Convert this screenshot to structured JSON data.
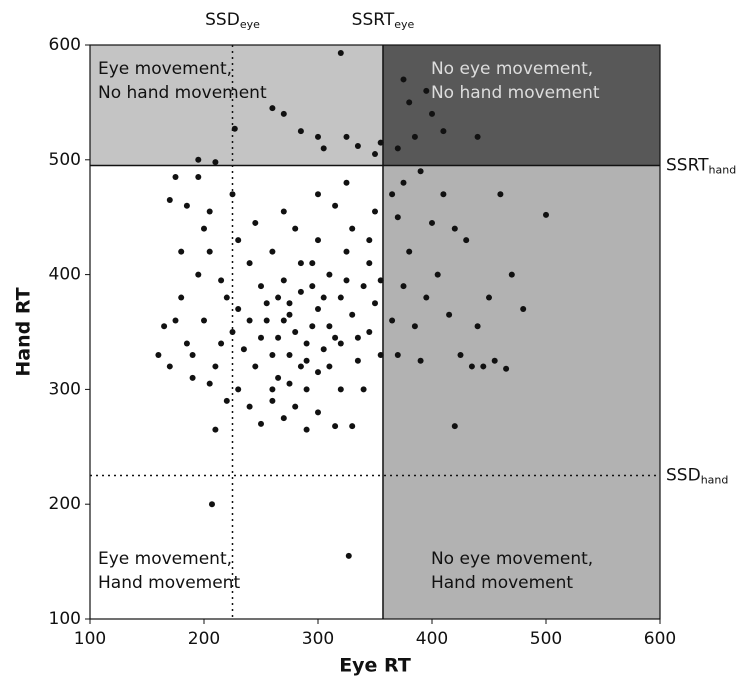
{
  "chart_data": {
    "type": "scatter",
    "xlabel": "Eye RT",
    "ylabel": "Hand RT",
    "xlim": [
      100,
      600
    ],
    "ylim": [
      100,
      600
    ],
    "xticks": [
      100,
      200,
      300,
      400,
      500,
      600
    ],
    "yticks": [
      100,
      200,
      300,
      400,
      500,
      600
    ],
    "color": "#111111",
    "shading": {
      "top-left": "#c4c4c4",
      "top-right": "#585858",
      "bottom-right": "#b2b2b2"
    },
    "reference_lines": [
      {
        "label": "SSD",
        "sub": "eye",
        "x": 225,
        "style": "dotted"
      },
      {
        "label": "SSRT",
        "sub": "eye",
        "x": 357,
        "style": "solid"
      },
      {
        "label": "SSRT",
        "sub": "hand",
        "y": 495,
        "style": "solid"
      },
      {
        "label": "SSD",
        "sub": "hand",
        "y": 225,
        "style": "dotted"
      }
    ],
    "region_labels": [
      {
        "corner": "top-left",
        "lines": [
          "Eye movement,",
          "No hand movement"
        ]
      },
      {
        "corner": "top-right",
        "lines": [
          "No eye movement,",
          "No hand movement"
        ]
      },
      {
        "corner": "bottom-left",
        "lines": [
          "Eye movement,",
          "Hand movement"
        ]
      },
      {
        "corner": "bottom-right",
        "lines": [
          "No eye movement,",
          "Hand movement"
        ]
      }
    ],
    "x": [
      280,
      290,
      270,
      300,
      260,
      310,
      285,
      275,
      295,
      250,
      265,
      305,
      320,
      240,
      255,
      290,
      300,
      315,
      330,
      270,
      285,
      310,
      325,
      340,
      245,
      235,
      225,
      260,
      280,
      300,
      320,
      335,
      345,
      350,
      330,
      315,
      300,
      280,
      260,
      240,
      220,
      215,
      210,
      230,
      250,
      270,
      290,
      315,
      340,
      355,
      345,
      350,
      325,
      300,
      270,
      245,
      230,
      205,
      195,
      180,
      175,
      165,
      160,
      185,
      200,
      190,
      205,
      220,
      240,
      260,
      275,
      295,
      305,
      285,
      265,
      255,
      275,
      290,
      310,
      320,
      335,
      325,
      275,
      230,
      215,
      200,
      185,
      170,
      175,
      195,
      205,
      225,
      180,
      190,
      170,
      250,
      265,
      295,
      355,
      345,
      365,
      375,
      370,
      380,
      375,
      365,
      385,
      370,
      390,
      395,
      405,
      400,
      410,
      420,
      430,
      415,
      425,
      440,
      450,
      460,
      470,
      480,
      455,
      435,
      420,
      500,
      445,
      465,
      390,
      320,
      227,
      195,
      210,
      260,
      270,
      285,
      300,
      305,
      325,
      335,
      350,
      355,
      375,
      380,
      395,
      400,
      385,
      410,
      370,
      440,
      207,
      327,
      210,
      330
    ],
    "values": [
      350,
      340,
      360,
      370,
      330,
      355,
      320,
      375,
      390,
      345,
      310,
      335,
      380,
      360,
      375,
      300,
      315,
      345,
      365,
      395,
      410,
      400,
      420,
      390,
      320,
      335,
      350,
      290,
      285,
      280,
      300,
      325,
      350,
      375,
      440,
      460,
      430,
      440,
      420,
      410,
      380,
      340,
      320,
      300,
      270,
      275,
      265,
      268,
      300,
      330,
      410,
      455,
      480,
      470,
      455,
      445,
      430,
      420,
      400,
      380,
      360,
      355,
      330,
      340,
      360,
      310,
      305,
      290,
      285,
      300,
      330,
      355,
      380,
      385,
      345,
      360,
      365,
      325,
      320,
      340,
      345,
      395,
      305,
      370,
      395,
      440,
      460,
      465,
      485,
      485,
      455,
      470,
      420,
      330,
      320,
      390,
      380,
      410,
      395,
      430,
      470,
      480,
      450,
      420,
      390,
      360,
      355,
      330,
      325,
      380,
      400,
      445,
      470,
      440,
      430,
      365,
      330,
      355,
      380,
      470,
      400,
      370,
      325,
      320,
      268,
      452,
      320,
      318,
      490,
      593,
      527,
      500,
      498,
      545,
      540,
      525,
      520,
      510,
      520,
      512,
      505,
      515,
      570,
      550,
      560,
      540,
      520,
      525,
      510,
      520,
      200,
      155,
      265,
      268
    ]
  }
}
